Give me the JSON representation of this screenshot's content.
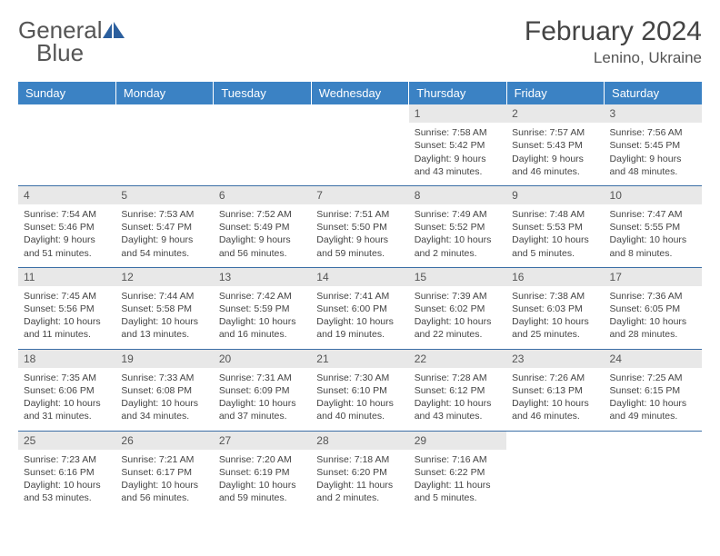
{
  "logo": {
    "word1": "General",
    "word2": "Blue"
  },
  "title": "February 2024",
  "location": "Lenino, Ukraine",
  "colors": {
    "header_bg": "#3b82c4",
    "row_line": "#3b6ea5",
    "daynum_bg": "#e8e8e8"
  },
  "weekdays": [
    "Sunday",
    "Monday",
    "Tuesday",
    "Wednesday",
    "Thursday",
    "Friday",
    "Saturday"
  ],
  "weeks": [
    [
      null,
      null,
      null,
      null,
      {
        "n": "1",
        "sr": "7:58 AM",
        "ss": "5:42 PM",
        "dl": "9 hours and 43 minutes."
      },
      {
        "n": "2",
        "sr": "7:57 AM",
        "ss": "5:43 PM",
        "dl": "9 hours and 46 minutes."
      },
      {
        "n": "3",
        "sr": "7:56 AM",
        "ss": "5:45 PM",
        "dl": "9 hours and 48 minutes."
      }
    ],
    [
      {
        "n": "4",
        "sr": "7:54 AM",
        "ss": "5:46 PM",
        "dl": "9 hours and 51 minutes."
      },
      {
        "n": "5",
        "sr": "7:53 AM",
        "ss": "5:47 PM",
        "dl": "9 hours and 54 minutes."
      },
      {
        "n": "6",
        "sr": "7:52 AM",
        "ss": "5:49 PM",
        "dl": "9 hours and 56 minutes."
      },
      {
        "n": "7",
        "sr": "7:51 AM",
        "ss": "5:50 PM",
        "dl": "9 hours and 59 minutes."
      },
      {
        "n": "8",
        "sr": "7:49 AM",
        "ss": "5:52 PM",
        "dl": "10 hours and 2 minutes."
      },
      {
        "n": "9",
        "sr": "7:48 AM",
        "ss": "5:53 PM",
        "dl": "10 hours and 5 minutes."
      },
      {
        "n": "10",
        "sr": "7:47 AM",
        "ss": "5:55 PM",
        "dl": "10 hours and 8 minutes."
      }
    ],
    [
      {
        "n": "11",
        "sr": "7:45 AM",
        "ss": "5:56 PM",
        "dl": "10 hours and 11 minutes."
      },
      {
        "n": "12",
        "sr": "7:44 AM",
        "ss": "5:58 PM",
        "dl": "10 hours and 13 minutes."
      },
      {
        "n": "13",
        "sr": "7:42 AM",
        "ss": "5:59 PM",
        "dl": "10 hours and 16 minutes."
      },
      {
        "n": "14",
        "sr": "7:41 AM",
        "ss": "6:00 PM",
        "dl": "10 hours and 19 minutes."
      },
      {
        "n": "15",
        "sr": "7:39 AM",
        "ss": "6:02 PM",
        "dl": "10 hours and 22 minutes."
      },
      {
        "n": "16",
        "sr": "7:38 AM",
        "ss": "6:03 PM",
        "dl": "10 hours and 25 minutes."
      },
      {
        "n": "17",
        "sr": "7:36 AM",
        "ss": "6:05 PM",
        "dl": "10 hours and 28 minutes."
      }
    ],
    [
      {
        "n": "18",
        "sr": "7:35 AM",
        "ss": "6:06 PM",
        "dl": "10 hours and 31 minutes."
      },
      {
        "n": "19",
        "sr": "7:33 AM",
        "ss": "6:08 PM",
        "dl": "10 hours and 34 minutes."
      },
      {
        "n": "20",
        "sr": "7:31 AM",
        "ss": "6:09 PM",
        "dl": "10 hours and 37 minutes."
      },
      {
        "n": "21",
        "sr": "7:30 AM",
        "ss": "6:10 PM",
        "dl": "10 hours and 40 minutes."
      },
      {
        "n": "22",
        "sr": "7:28 AM",
        "ss": "6:12 PM",
        "dl": "10 hours and 43 minutes."
      },
      {
        "n": "23",
        "sr": "7:26 AM",
        "ss": "6:13 PM",
        "dl": "10 hours and 46 minutes."
      },
      {
        "n": "24",
        "sr": "7:25 AM",
        "ss": "6:15 PM",
        "dl": "10 hours and 49 minutes."
      }
    ],
    [
      {
        "n": "25",
        "sr": "7:23 AM",
        "ss": "6:16 PM",
        "dl": "10 hours and 53 minutes."
      },
      {
        "n": "26",
        "sr": "7:21 AM",
        "ss": "6:17 PM",
        "dl": "10 hours and 56 minutes."
      },
      {
        "n": "27",
        "sr": "7:20 AM",
        "ss": "6:19 PM",
        "dl": "10 hours and 59 minutes."
      },
      {
        "n": "28",
        "sr": "7:18 AM",
        "ss": "6:20 PM",
        "dl": "11 hours and 2 minutes."
      },
      {
        "n": "29",
        "sr": "7:16 AM",
        "ss": "6:22 PM",
        "dl": "11 hours and 5 minutes."
      },
      null,
      null
    ]
  ],
  "labels": {
    "sunrise": "Sunrise: ",
    "sunset": "Sunset: ",
    "daylight": "Daylight: "
  }
}
